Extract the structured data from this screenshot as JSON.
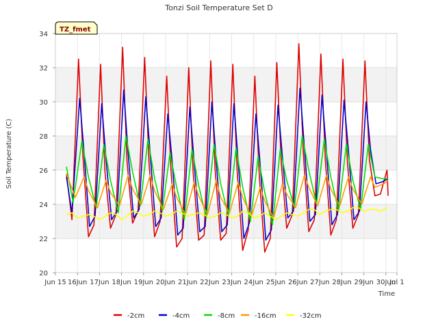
{
  "chart_data": {
    "type": "line",
    "title": "Tonzi Soil Temperature Set D",
    "xlabel": "Time",
    "ylabel": "Soil Temperature (C)",
    "badge": "TZ_fmet",
    "xlim": [
      15.5,
      31.0
    ],
    "ylim": [
      20,
      34
    ],
    "x_ticks": [
      {
        "value": 15.5,
        "label": "Jun 15"
      },
      {
        "value": 16.5,
        "label": "16Jun"
      },
      {
        "value": 17.5,
        "label": "17Jun"
      },
      {
        "value": 18.5,
        "label": "18Jun"
      },
      {
        "value": 19.5,
        "label": "19Jun"
      },
      {
        "value": 20.5,
        "label": "20Jun"
      },
      {
        "value": 21.5,
        "label": "21Jun"
      },
      {
        "value": 22.5,
        "label": "22Jun"
      },
      {
        "value": 23.5,
        "label": "23Jun"
      },
      {
        "value": 24.5,
        "label": "24Jun"
      },
      {
        "value": 25.5,
        "label": "25Jun"
      },
      {
        "value": 26.5,
        "label": "26Jun"
      },
      {
        "value": 27.5,
        "label": "27Jun"
      },
      {
        "value": 28.5,
        "label": "28Jun"
      },
      {
        "value": 29.5,
        "label": "29Jun"
      },
      {
        "value": 30.5,
        "label": "30Jun"
      },
      {
        "value": 31.0,
        "label": "Jul 1"
      }
    ],
    "y_ticks": [
      20,
      22,
      24,
      26,
      28,
      30,
      32,
      34
    ],
    "grid": true,
    "banded_background": true,
    "legend_position": "bottom",
    "series": [
      {
        "name": "-2cm",
        "color": "#dd0000",
        "x": [
          16.0,
          16.25,
          16.55,
          16.75,
          17.0,
          17.25,
          17.55,
          17.75,
          18.0,
          18.25,
          18.55,
          18.75,
          19.0,
          19.25,
          19.55,
          19.75,
          20.0,
          20.25,
          20.55,
          20.75,
          21.0,
          21.25,
          21.55,
          21.75,
          22.0,
          22.25,
          22.55,
          22.75,
          23.0,
          23.25,
          23.55,
          23.75,
          24.0,
          24.25,
          24.55,
          24.75,
          25.0,
          25.25,
          25.55,
          25.75,
          26.0,
          26.25,
          26.55,
          26.75,
          27.0,
          27.25,
          27.55,
          27.75,
          28.0,
          28.25,
          28.55,
          28.75,
          29.0,
          29.25,
          29.55,
          29.75,
          30.0,
          30.25,
          30.55,
          30.6
        ],
        "y": [
          25.8,
          23.1,
          32.5,
          26.8,
          22.1,
          22.8,
          32.2,
          25.9,
          22.6,
          23.4,
          33.2,
          26.5,
          22.9,
          23.6,
          32.6,
          26.4,
          22.1,
          23.0,
          31.5,
          25.9,
          21.5,
          22.0,
          32.0,
          25.9,
          21.9,
          22.2,
          32.4,
          26.0,
          21.9,
          22.3,
          32.2,
          25.9,
          21.3,
          22.5,
          31.5,
          25.7,
          21.2,
          22.0,
          32.3,
          26.4,
          22.6,
          23.4,
          33.4,
          27.0,
          22.4,
          23.1,
          32.8,
          26.6,
          22.2,
          23.1,
          32.5,
          26.5,
          22.6,
          23.4,
          32.4,
          26.6,
          24.5,
          24.6,
          26.0,
          24.5
        ]
      },
      {
        "name": "-4cm",
        "color": "#0000cc",
        "x": [
          16.0,
          16.25,
          16.6,
          16.8,
          17.05,
          17.3,
          17.6,
          17.8,
          18.05,
          18.3,
          18.6,
          18.8,
          19.05,
          19.3,
          19.6,
          19.8,
          20.05,
          20.3,
          20.6,
          20.8,
          21.05,
          21.3,
          21.6,
          21.8,
          22.05,
          22.3,
          22.6,
          22.8,
          23.05,
          23.3,
          23.6,
          23.8,
          24.05,
          24.3,
          24.6,
          24.8,
          25.05,
          25.3,
          25.6,
          25.8,
          26.05,
          26.3,
          26.6,
          26.8,
          27.05,
          27.3,
          27.6,
          27.8,
          28.05,
          28.3,
          28.6,
          28.8,
          29.05,
          29.3,
          29.6,
          29.8,
          30.05,
          30.3,
          30.6
        ],
        "y": [
          25.6,
          23.5,
          30.2,
          27.0,
          22.7,
          23.3,
          29.9,
          26.6,
          23.1,
          23.6,
          30.7,
          27.0,
          23.2,
          23.7,
          30.3,
          27.0,
          22.7,
          23.2,
          29.3,
          26.5,
          22.2,
          22.6,
          29.7,
          26.4,
          22.4,
          22.7,
          30.0,
          26.5,
          22.4,
          22.8,
          29.9,
          26.4,
          22.0,
          22.9,
          29.3,
          26.2,
          21.9,
          22.5,
          29.8,
          26.8,
          23.2,
          23.6,
          30.8,
          27.3,
          23.0,
          23.4,
          30.4,
          27.1,
          22.8,
          23.4,
          30.1,
          27.1,
          23.1,
          23.6,
          30.0,
          27.2,
          25.2,
          25.3,
          25.5
        ]
      },
      {
        "name": "-8cm",
        "color": "#00dd00",
        "x": [
          16.0,
          16.3,
          16.7,
          17.0,
          17.35,
          17.7,
          18.0,
          18.35,
          18.7,
          19.0,
          19.35,
          19.7,
          20.0,
          20.35,
          20.7,
          21.0,
          21.35,
          21.7,
          22.0,
          22.35,
          22.7,
          23.0,
          23.35,
          23.7,
          24.0,
          24.35,
          24.7,
          25.0,
          25.35,
          25.7,
          26.0,
          26.35,
          26.7,
          27.0,
          27.35,
          27.7,
          28.0,
          28.35,
          28.7,
          29.0,
          29.35,
          29.7,
          30.0,
          30.35,
          30.6
        ],
        "y": [
          26.2,
          24.1,
          27.7,
          25.6,
          23.8,
          27.5,
          25.4,
          23.5,
          28.0,
          25.9,
          23.9,
          27.8,
          25.5,
          23.6,
          27.0,
          25.0,
          23.1,
          27.2,
          25.1,
          23.2,
          27.5,
          25.2,
          23.3,
          27.3,
          25.0,
          23.0,
          26.8,
          24.7,
          22.8,
          27.2,
          25.4,
          23.8,
          28.0,
          26.0,
          24.0,
          27.8,
          25.6,
          23.6,
          27.5,
          25.4,
          23.7,
          27.5,
          25.6,
          25.5,
          25.5
        ]
      },
      {
        "name": "-16cm",
        "color": "#ff9900",
        "x": [
          16.0,
          16.4,
          16.8,
          17.0,
          17.4,
          17.8,
          18.0,
          18.4,
          18.8,
          19.0,
          19.4,
          19.8,
          20.0,
          20.4,
          20.8,
          21.0,
          21.4,
          21.8,
          22.0,
          22.4,
          22.8,
          23.0,
          23.4,
          23.8,
          24.0,
          24.4,
          24.8,
          25.0,
          25.4,
          25.8,
          26.0,
          26.4,
          26.8,
          27.0,
          27.4,
          27.8,
          28.0,
          28.4,
          28.8,
          29.0,
          29.4,
          29.8,
          30.0,
          30.4,
          30.6
        ],
        "y": [
          25.8,
          24.4,
          25.6,
          24.8,
          23.8,
          25.4,
          24.7,
          23.9,
          25.7,
          24.9,
          24.0,
          25.7,
          24.8,
          23.7,
          25.2,
          24.4,
          23.4,
          25.3,
          24.5,
          23.4,
          25.4,
          24.4,
          23.5,
          25.3,
          24.4,
          23.3,
          25.0,
          24.2,
          23.2,
          25.2,
          24.6,
          23.8,
          25.7,
          25.0,
          23.9,
          25.7,
          24.9,
          23.9,
          25.6,
          24.9,
          24.0,
          25.6,
          25.0,
          25.2,
          25.4
        ]
      },
      {
        "name": "-32cm",
        "color": "#ffff00",
        "x": [
          16.0,
          16.25,
          16.5,
          16.75,
          17.0,
          17.25,
          17.5,
          17.75,
          18.0,
          18.25,
          18.5,
          18.75,
          19.0,
          19.25,
          19.5,
          19.75,
          20.0,
          20.25,
          20.5,
          20.75,
          21.0,
          21.25,
          21.5,
          21.75,
          22.0,
          22.25,
          22.5,
          22.75,
          23.0,
          23.25,
          23.5,
          23.75,
          24.0,
          24.25,
          24.5,
          24.75,
          25.0,
          25.25,
          25.5,
          25.75,
          26.0,
          26.25,
          26.5,
          26.75,
          27.0,
          27.25,
          27.5,
          27.75,
          28.0,
          28.25,
          28.5,
          28.75,
          29.0,
          29.25,
          29.5,
          29.75,
          30.0,
          30.25,
          30.55
        ],
        "y": [
          23.4,
          23.5,
          23.2,
          23.3,
          23.4,
          23.3,
          23.1,
          23.3,
          23.5,
          23.4,
          23.1,
          23.3,
          23.6,
          23.5,
          23.3,
          23.4,
          23.6,
          23.5,
          23.3,
          23.4,
          23.6,
          23.5,
          23.3,
          23.4,
          23.5,
          23.4,
          23.2,
          23.3,
          23.5,
          23.4,
          23.2,
          23.3,
          23.6,
          23.5,
          23.2,
          23.3,
          23.5,
          23.3,
          23.1,
          23.3,
          23.5,
          23.4,
          23.3,
          23.5,
          23.7,
          23.7,
          23.4,
          23.6,
          23.7,
          23.7,
          23.5,
          23.6,
          23.8,
          23.8,
          23.6,
          23.7,
          23.7,
          23.6,
          23.8
        ]
      }
    ]
  }
}
